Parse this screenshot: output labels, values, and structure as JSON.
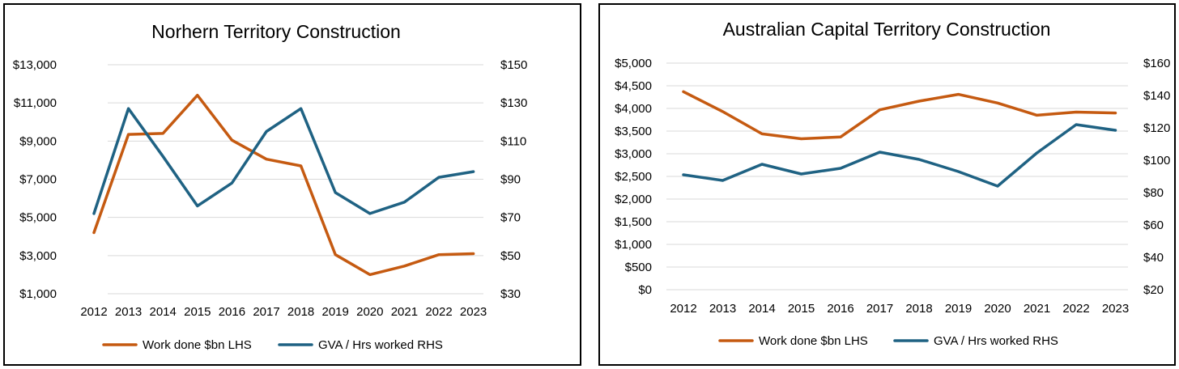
{
  "colors": {
    "work_done": "#C55A11",
    "gva": "#1F6283",
    "grid": "#D9D9D9"
  },
  "chart_data": [
    {
      "type": "line",
      "title": "Norhern Territory Construction",
      "categories": [
        "2012",
        "2013",
        "2014",
        "2015",
        "2016",
        "2017",
        "2018",
        "2019",
        "2020",
        "2021",
        "2022",
        "2023"
      ],
      "y_left": {
        "min": 1000,
        "max": 13000,
        "ticks": [
          1000,
          3000,
          5000,
          7000,
          9000,
          11000,
          13000
        ],
        "tick_labels": [
          "$1,000",
          "$3,000",
          "$5,000",
          "$7,000",
          "$9,000",
          "$11,000",
          "$13,000"
        ]
      },
      "y_right": {
        "min": 30,
        "max": 150,
        "ticks": [
          30,
          50,
          70,
          90,
          110,
          130,
          150
        ],
        "tick_labels": [
          "$30",
          "$50",
          "$70",
          "$90",
          "$110",
          "$130",
          "$150"
        ]
      },
      "grid": true,
      "legend_position": "bottom",
      "series": [
        {
          "name": "Work done $bn LHS",
          "axis": "left",
          "color": "#C55A11",
          "values": [
            4200,
            9350,
            9400,
            11400,
            9050,
            8050,
            7700,
            3050,
            2000,
            2450,
            3050,
            3100
          ]
        },
        {
          "name": "GVA / Hrs worked RHS",
          "axis": "right",
          "color": "#1F6283",
          "values": [
            72,
            127,
            102,
            76,
            88,
            115,
            127,
            83,
            72,
            78,
            91,
            94
          ]
        }
      ]
    },
    {
      "type": "line",
      "title": "Australian Capital Territory Construction",
      "categories": [
        "2012",
        "2013",
        "2014",
        "2015",
        "2016",
        "2017",
        "2018",
        "2019",
        "2020",
        "2021",
        "2022",
        "2023"
      ],
      "y_left": {
        "min": 0,
        "max": 5000,
        "ticks": [
          0,
          500,
          1000,
          1500,
          2000,
          2500,
          3000,
          3500,
          4000,
          4500,
          5000
        ],
        "tick_labels": [
          "$0",
          "$500",
          "$1,000",
          "$1,500",
          "$2,000",
          "$2,500",
          "$3,000",
          "$3,500",
          "$4,000",
          "$4,500",
          "$5,000"
        ]
      },
      "y_right": {
        "min": 20,
        "max": 160,
        "ticks": [
          20,
          40,
          60,
          80,
          100,
          120,
          140,
          160
        ],
        "tick_labels": [
          "$20",
          "$40",
          "$60",
          "$80",
          "$100",
          "$120",
          "$140",
          "$160"
        ]
      },
      "grid": true,
      "legend_position": "bottom",
      "series": [
        {
          "name": "Work done $bn LHS",
          "axis": "left",
          "color": "#C55A11",
          "values": [
            4370,
            3930,
            3440,
            3330,
            3370,
            3970,
            4160,
            4310,
            4120,
            3850,
            3920,
            3900
          ]
        },
        {
          "name": "GVA / Hrs worked RHS",
          "axis": "right",
          "color": "#1F6283",
          "values": [
            91,
            87.5,
            97.5,
            91.5,
            95,
            105,
            100.5,
            93,
            84,
            104.5,
            122,
            118.5
          ]
        }
      ]
    }
  ]
}
